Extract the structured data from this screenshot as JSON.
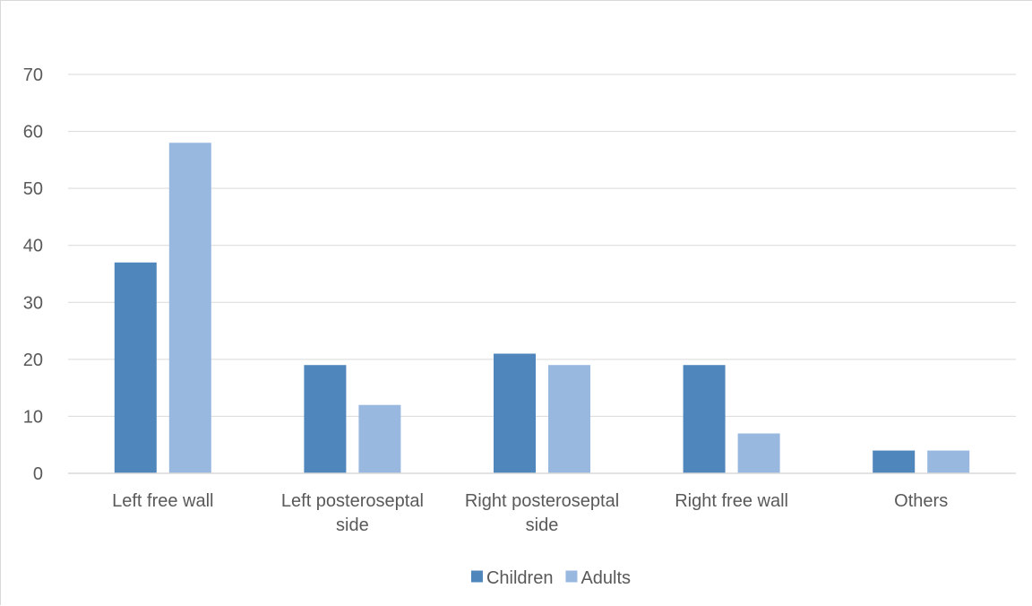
{
  "chart_data": {
    "type": "bar",
    "title": "",
    "xlabel": "",
    "ylabel": "",
    "categories": [
      "Left free wall",
      "Left posteroseptal side",
      "Right posteroseptal side",
      "Right free wall",
      "Others"
    ],
    "series": [
      {
        "name": "Children",
        "color": "#4f87bc",
        "values": [
          37,
          19,
          21,
          19,
          4
        ]
      },
      {
        "name": "Adults",
        "color": "#98b8df",
        "values": [
          58,
          12,
          19,
          7,
          4
        ]
      }
    ],
    "ylim": [
      0,
      70
    ],
    "yticks": [
      0,
      10,
      20,
      30,
      40,
      50,
      60,
      70
    ],
    "grid": true,
    "legend_position": "bottom"
  }
}
